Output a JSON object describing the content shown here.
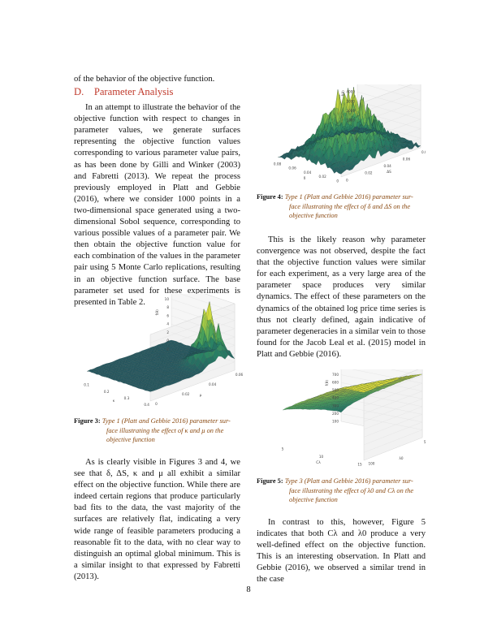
{
  "intro_line": "of the behavior of the objective function.",
  "section_heading": "D. Parameter Analysis",
  "left_para1": "In an attempt to illustrate the behavior of the objective function with respect to changes in parameter values, we generate surfaces representing the objective function values corresponding to various parameter value pairs, as has been done by Gilli and Winker (2003) and Fabretti (2013). We repeat the process previously employed in Platt and Gebbie (2016), where we consider 1000 points in a two-dimensional space generated using a two-dimensional Sobol sequence, corresponding to various possible values of a parameter pair. We then obtain the objective function value for each combination of the values in the parameter pair using 5 Monte Carlo replications, resulting in an objective function surface. The base parameter set used for these experiments is presented in Table 2.",
  "left_para2": "As is clearly visible in Figures 3 and 4, we see that δ, ΔS, κ and μ all exhibit a similar effect on the objective function. While there are indeed certain regions that produce particularly bad fits to the data, the vast majority of the surfaces are relatively flat, indicating a very wide range of feasible parameters producing a reasonable fit to the data, with no clear way to distinguish an optimal global minimum. This is a similar insight to that expressed by Fabretti (2013).",
  "right_para1": "This is the likely reason why parameter convergence was not observed, despite the fact that the objective function values were similar for each experiment, as a very large area of the parameter space produces very similar dynamics. The effect of these parameters on the dynamics of the obtained log price time series is thus not clearly defined, again indicative of parameter degeneracies in a similar vein to those found for the Jacob Leal et al. (2015) model in Platt and Gebbie (2016).",
  "right_para2": "In contrast to this, however, Figure 5 indicates that both Cλ and λ0 produce a very well-defined effect on the objective function. This is an interesting observation. In Platt and Gebbie (2016), we observed a similar trend in the case",
  "figures": {
    "fig4": {
      "label": "Figure 4:",
      "caption_l1": "Type 1 (Platt and Gebbie 2016) parameter sur-",
      "caption_l2": "face illustrating the effect of δ and ΔS on the",
      "caption_l3": "objective function",
      "zlabel": "f(θ)",
      "xlabel": "δ",
      "ylabel": "ΔS",
      "z_ticks": [
        "7000",
        "6000",
        "5000",
        "4000",
        "3000",
        "2000",
        "1000",
        "0"
      ],
      "x_ticks": [
        "0.08",
        "0.06",
        "0.04",
        "0.02",
        "0"
      ],
      "y_ticks": [
        "0",
        "0.02",
        "0.04",
        "0.06",
        "0.08"
      ]
    },
    "fig3": {
      "label": "Figure 3:",
      "caption_l1": "Type 1 (Platt and Gebbie 2016) parameter sur-",
      "caption_l2": "face illustrating the effect of κ and μ on the",
      "caption_l3": "objective function",
      "zlabel": "f(θ)",
      "xlabel": "κ",
      "ylabel": "μ",
      "z_scale": "× 10⁴",
      "z_ticks": [
        "14",
        "12",
        "10",
        "8",
        "6",
        "4",
        "2",
        "0",
        "-2"
      ],
      "x_ticks": [
        "0.1",
        "0.2",
        "0.3",
        "0.4"
      ],
      "y_ticks": [
        "0",
        "0.02",
        "0.04",
        "0.06"
      ]
    },
    "fig5": {
      "label": "Figure 5:",
      "caption_l1": "Type 3 (Platt and Gebbie 2016) parameter sur-",
      "caption_l2": "face illustrating the effect of λ0 and Cλ on the",
      "caption_l3": "objective function",
      "zlabel": "f(θ)",
      "xlabel": "Cλ",
      "ylabel": "λ0",
      "z_ticks": [
        "1000",
        "900",
        "800",
        "700",
        "600",
        "500",
        "400",
        "300",
        "200",
        "100"
      ],
      "x_ticks": [
        "5",
        "10",
        "15"
      ],
      "y_ticks": [
        "100",
        "50"
      ]
    }
  },
  "page_number": "8"
}
